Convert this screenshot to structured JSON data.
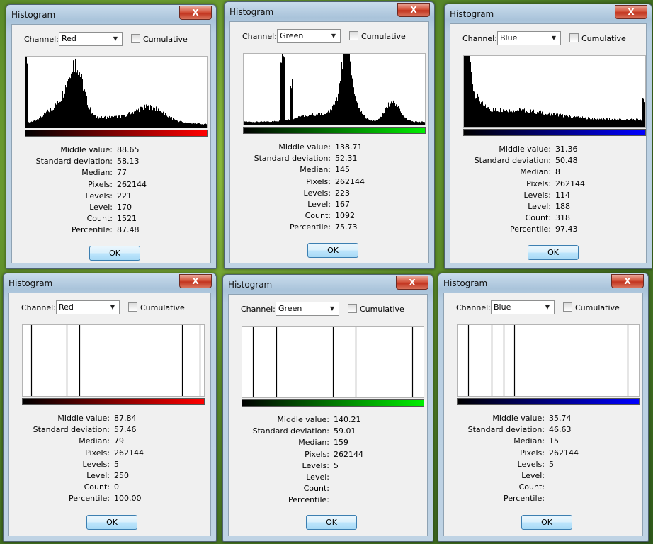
{
  "common": {
    "title": "Histogram",
    "close_label": "X",
    "channel_label": "Channel:",
    "cumulative_label": "Cumulative",
    "ok_label": "OK",
    "stat_labels": [
      "Middle value:",
      "Standard deviation:",
      "Median:",
      "Pixels:",
      "Levels:",
      "Level:",
      "Count:",
      "Percentile:"
    ]
  },
  "colors": {
    "red": "#ff0000",
    "green": "#00ee00",
    "blue": "#0000ff"
  },
  "windows": [
    {
      "channel": "Red",
      "gradient_end": "#ff0000",
      "histogram": "smooth-red",
      "stats": [
        "88.65",
        "58.13",
        "77",
        "262144",
        "221",
        "170",
        "1521",
        "87.48"
      ]
    },
    {
      "channel": "Green",
      "gradient_end": "#00ee00",
      "histogram": "smooth-green",
      "stats": [
        "138.71",
        "52.31",
        "145",
        "262144",
        "223",
        "167",
        "1092",
        "75.73"
      ]
    },
    {
      "channel": "Blue",
      "gradient_end": "#0000ff",
      "histogram": "smooth-blue",
      "stats": [
        "31.36",
        "50.48",
        "8",
        "262144",
        "114",
        "188",
        "318",
        "97.43"
      ]
    },
    {
      "channel": "Red",
      "gradient_end": "#ff0000",
      "histogram": "spikes",
      "spike_levels": [
        12,
        62,
        80,
        225,
        250
      ],
      "stats": [
        "87.84",
        "57.46",
        "79",
        "262144",
        "5",
        "250",
        "0",
        "100.00"
      ]
    },
    {
      "channel": "Green",
      "gradient_end": "#00ee00",
      "histogram": "spikes",
      "spike_levels": [
        15,
        48,
        128,
        160,
        240
      ],
      "stats": [
        "140.21",
        "59.01",
        "159",
        "262144",
        "5",
        "",
        "",
        ""
      ]
    },
    {
      "channel": "Blue",
      "gradient_end": "#0000ff",
      "histogram": "spikes",
      "spike_levels": [
        15,
        48,
        65,
        80,
        240
      ],
      "stats": [
        "35.74",
        "46.63",
        "15",
        "262144",
        "5",
        "",
        "",
        ""
      ]
    }
  ]
}
